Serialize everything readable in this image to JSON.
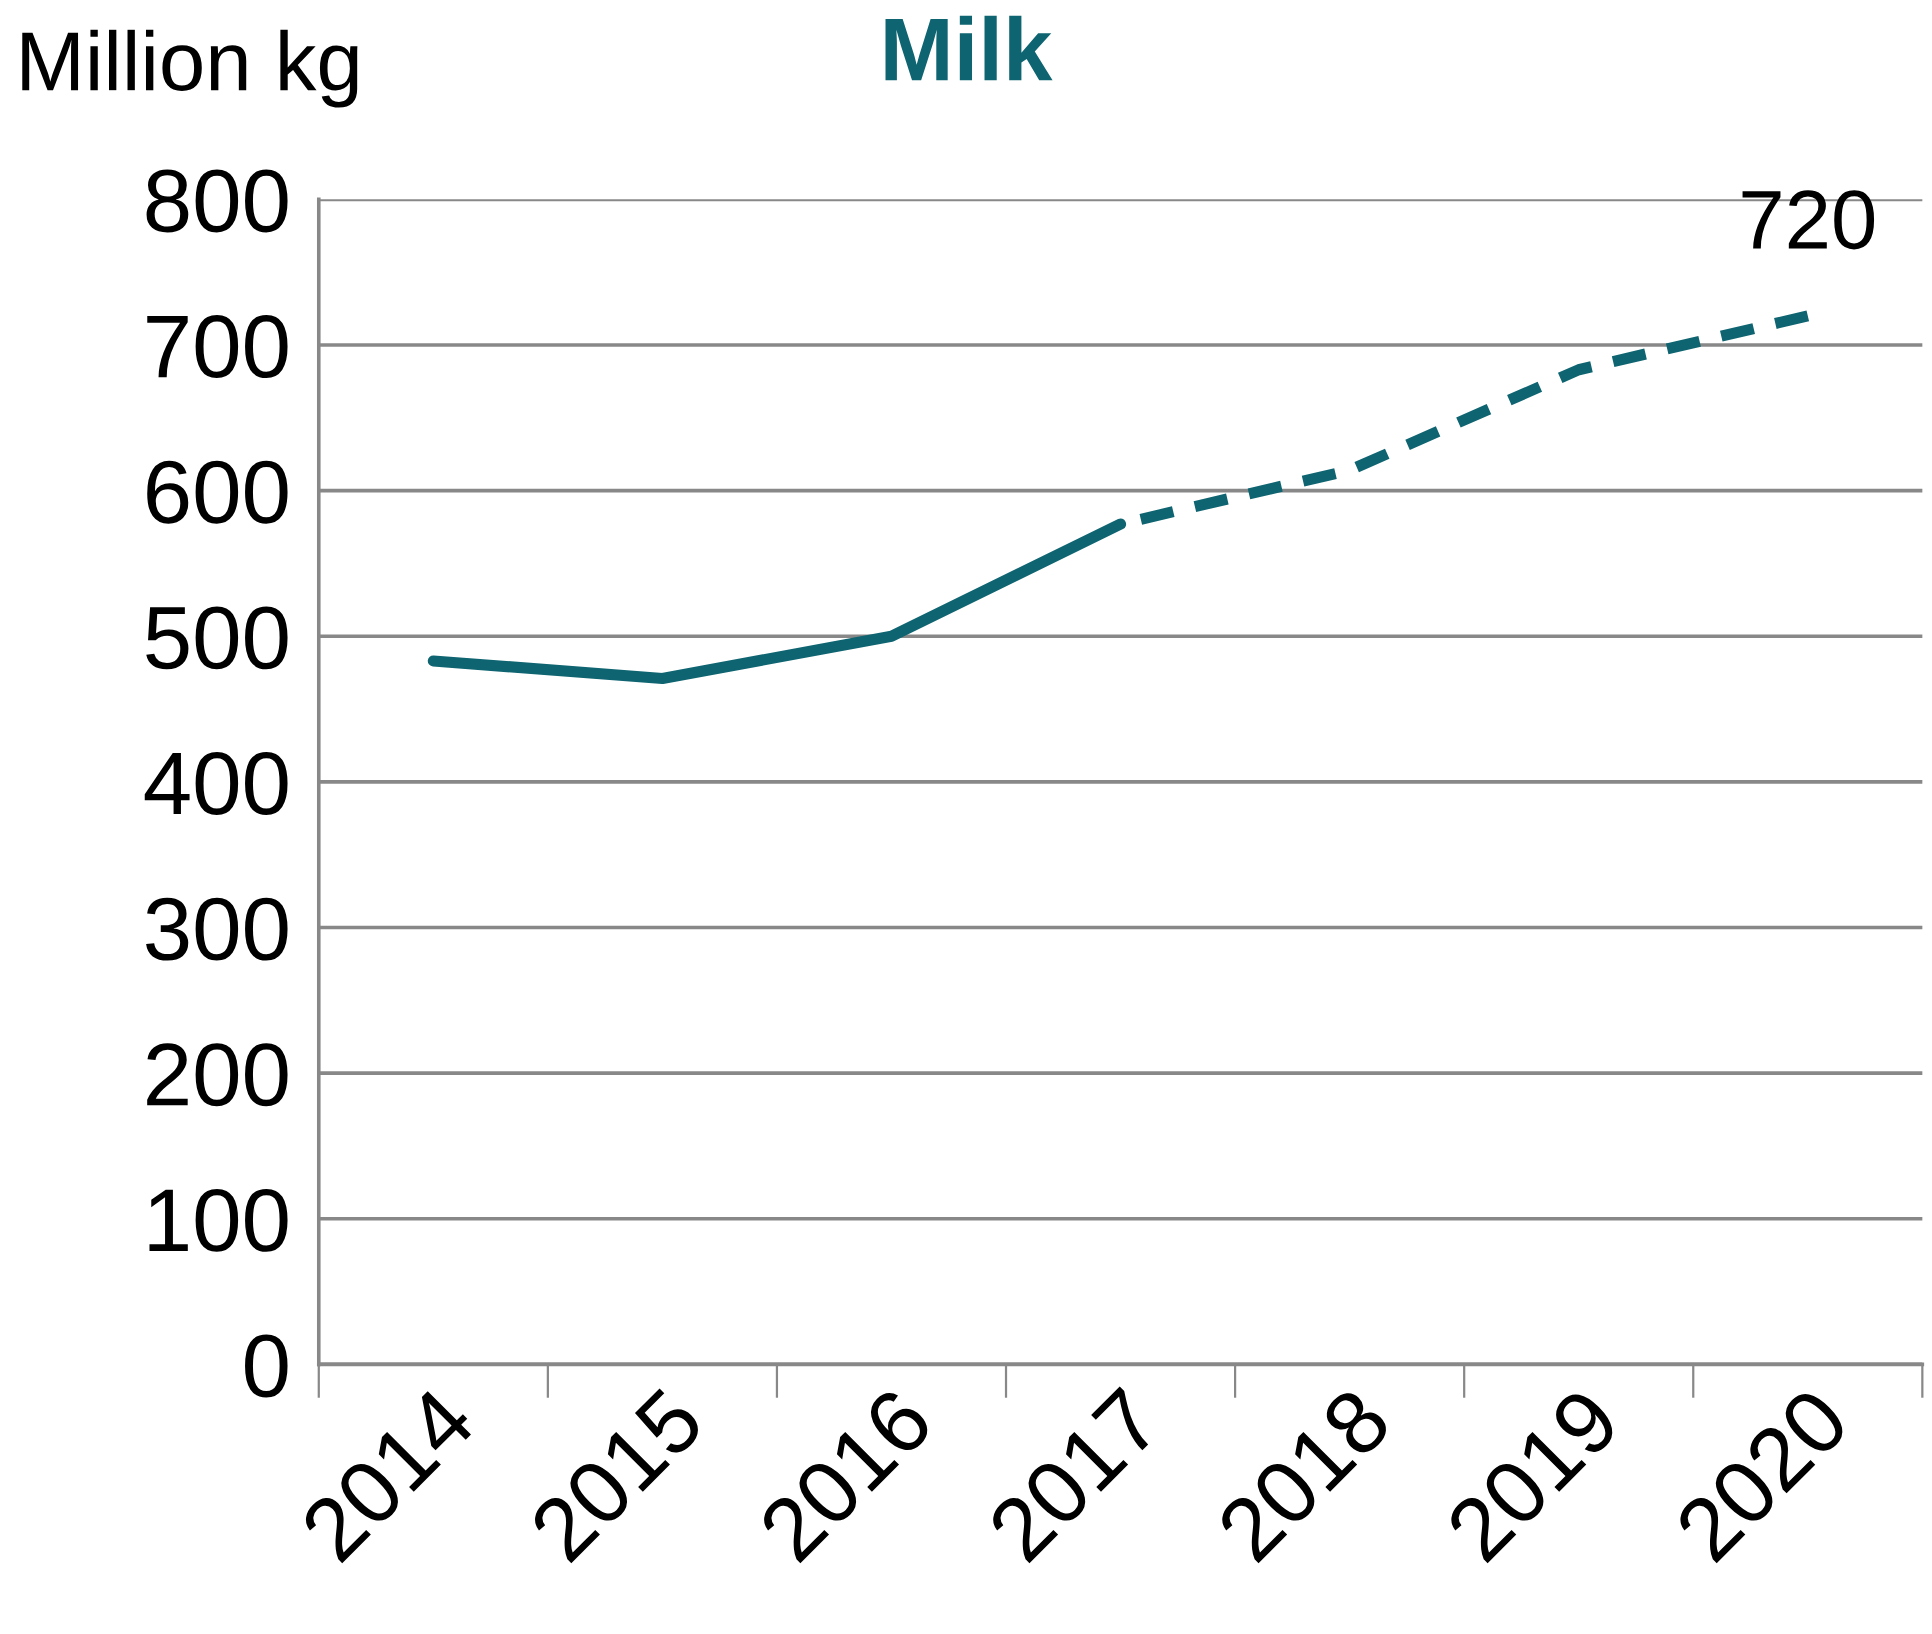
{
  "chart_data": {
    "type": "line",
    "title": "Milk",
    "ylabel": "Million kg",
    "categories": [
      "2014",
      "2015",
      "2016",
      "2017",
      "2018",
      "2019",
      "2020"
    ],
    "series": [
      {
        "color": "#0e6470",
        "line_style": "solid",
        "values": [
          483,
          471,
          500,
          577,
          null,
          null,
          null
        ]
      },
      {
        "color": "#0e6470",
        "line_style": "dashed",
        "values": [
          null,
          null,
          null,
          577,
          614,
          683,
          720
        ]
      }
    ],
    "ylim": [
      0,
      800
    ],
    "yticks": [
      0,
      100,
      200,
      300,
      400,
      500,
      600,
      700,
      800
    ],
    "grid": "y",
    "legend": false,
    "marker": "none",
    "annotations": [
      {
        "text": "720",
        "x": "2020",
        "y": 720
      }
    ]
  }
}
